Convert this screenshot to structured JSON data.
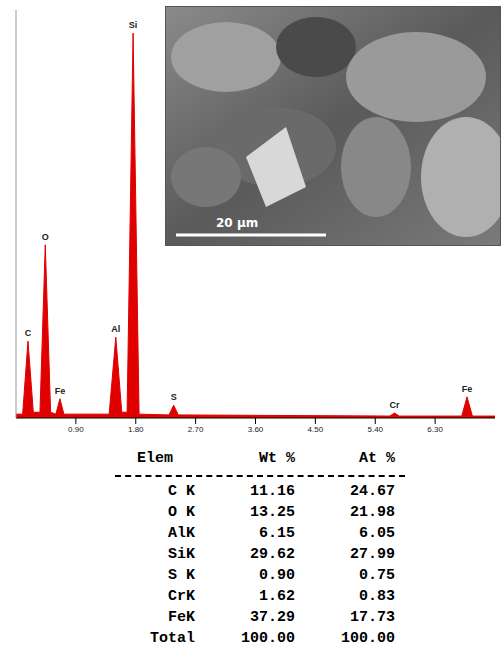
{
  "chart_data": {
    "type": "area",
    "x": [
      0,
      0.1,
      0.18,
      0.26,
      0.36,
      0.44,
      0.52,
      0.6,
      0.66,
      0.72,
      1.4,
      1.5,
      1.59,
      1.67,
      1.76,
      1.85,
      2.3,
      2.37,
      2.44,
      5.62,
      5.69,
      5.76,
      6.7,
      6.78,
      6.86,
      7.2
    ],
    "values": [
      1,
      1,
      20,
      1.5,
      1.5,
      45,
      1.5,
      1,
      5,
      1,
      1,
      21,
      1.5,
      1.5,
      100,
      1,
      0.8,
      3.3,
      0.8,
      0.5,
      1.3,
      0.5,
      0.5,
      5.5,
      0.5,
      0.5
    ],
    "color": "#e00000",
    "xlim": [
      0,
      7.2
    ],
    "xticks": [
      {
        "value": 0.9,
        "label": "0.90"
      },
      {
        "value": 1.8,
        "label": "1.80"
      },
      {
        "value": 2.7,
        "label": "2.70"
      },
      {
        "value": 3.6,
        "label": "3.60"
      },
      {
        "value": 4.5,
        "label": "4.50"
      },
      {
        "value": 5.4,
        "label": "5.40"
      },
      {
        "value": 6.3,
        "label": "6.30"
      }
    ],
    "ylim": [
      0,
      106
    ],
    "tick_labels": "x",
    "grid": false,
    "annotations": [
      {
        "text": "C",
        "x": 0.18,
        "y": 20
      },
      {
        "text": "O",
        "x": 0.44,
        "y": 45
      },
      {
        "text": "Fe",
        "x": 0.66,
        "y": 5
      },
      {
        "text": "Al",
        "x": 1.5,
        "y": 21
      },
      {
        "text": "Si",
        "x": 1.76,
        "y": 100
      },
      {
        "text": "S",
        "x": 2.37,
        "y": 3.3
      },
      {
        "text": "Cr",
        "x": 5.69,
        "y": 1.3
      },
      {
        "text": "Fe",
        "x": 6.78,
        "y": 5.5
      }
    ]
  },
  "image": {
    "scale_bar": "20 μm"
  },
  "table": {
    "header": [
      "Elem",
      "Wt %",
      "At %"
    ],
    "rows": [
      [
        "C K",
        "11.16",
        "24.67"
      ],
      [
        "O K",
        "13.25",
        "21.98"
      ],
      [
        "AlK",
        "6.15",
        "6.05"
      ],
      [
        "SiK",
        "29.62",
        "27.99"
      ],
      [
        "S K",
        "0.90",
        "0.75"
      ],
      [
        "CrK",
        "1.62",
        "0.83"
      ],
      [
        "FeK",
        "37.29",
        "17.73"
      ],
      [
        "Total",
        "100.00",
        "100.00"
      ]
    ]
  }
}
